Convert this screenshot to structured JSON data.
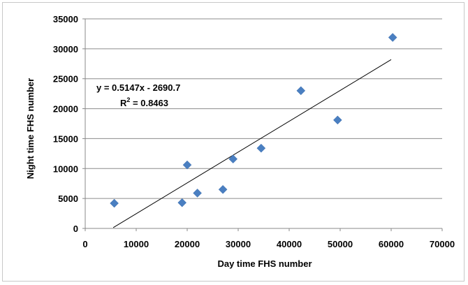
{
  "chart_data": {
    "type": "scatter",
    "title": "",
    "xlabel": "Day time FHS number",
    "ylabel": "Night time FHS number",
    "xlim": [
      0,
      70000
    ],
    "ylim": [
      0,
      35000
    ],
    "xticks": [
      0,
      10000,
      20000,
      30000,
      40000,
      50000,
      60000,
      70000
    ],
    "yticks": [
      0,
      5000,
      10000,
      15000,
      20000,
      25000,
      30000,
      35000
    ],
    "grid": "horizontal",
    "marker": "diamond",
    "marker_color": "#4a7fc1",
    "series": [
      {
        "points": [
          {
            "x": 5700,
            "y": 4200
          },
          {
            "x": 19000,
            "y": 4300
          },
          {
            "x": 20000,
            "y": 10600
          },
          {
            "x": 22000,
            "y": 5900
          },
          {
            "x": 27000,
            "y": 6500
          },
          {
            "x": 29000,
            "y": 11600
          },
          {
            "x": 34500,
            "y": 13400
          },
          {
            "x": 42300,
            "y": 23000
          },
          {
            "x": 49500,
            "y": 18100
          },
          {
            "x": 60300,
            "y": 31900
          }
        ]
      }
    ],
    "trendline": {
      "type": "linear",
      "slope": 0.5147,
      "intercept": -2690.7,
      "x_range": [
        5500,
        60000
      ],
      "equation_label": "y = 0.5147x - 2690.7",
      "r2_prefix": "R",
      "r2_sup": "2",
      "r2_value": " = 0.8463"
    }
  }
}
